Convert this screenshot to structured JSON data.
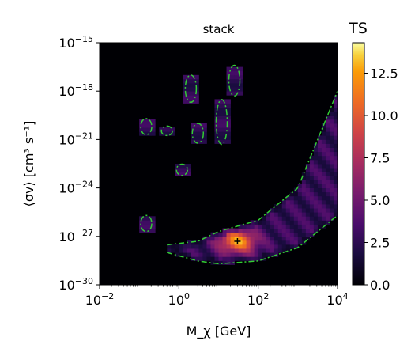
{
  "chart_data": {
    "type": "heatmap",
    "title": "stack",
    "xlabel": "M_χ [GeV]",
    "ylabel": "⟨σv⟩ [cm³ s⁻¹]",
    "x_scale": "log",
    "y_scale": "log",
    "xlim": [
      0.01,
      10000
    ],
    "ylim": [
      1e-30,
      1e-15
    ],
    "x_ticks": [
      {
        "value": 0.01,
        "base": "10",
        "exp": "−2"
      },
      {
        "value": 1,
        "base": "10",
        "exp": "0"
      },
      {
        "value": 100,
        "base": "10",
        "exp": "2"
      },
      {
        "value": 10000,
        "base": "10",
        "exp": "4"
      }
    ],
    "y_ticks": [
      {
        "value": 1e-30,
        "base": "10",
        "exp": "−30"
      },
      {
        "value": 1e-27,
        "base": "10",
        "exp": "−27"
      },
      {
        "value": 1e-24,
        "base": "10",
        "exp": "−24"
      },
      {
        "value": 1e-21,
        "base": "10",
        "exp": "−21"
      },
      {
        "value": 1e-18,
        "base": "10",
        "exp": "−18"
      },
      {
        "value": 1e-15,
        "base": "10",
        "exp": "−15"
      }
    ],
    "colorbar": {
      "label": "TS",
      "range": [
        0.0,
        14.3
      ],
      "ticks": [
        {
          "value": 0.0,
          "label": "0.0"
        },
        {
          "value": 2.5,
          "label": "2.5"
        },
        {
          "value": 5.0,
          "label": "5.0"
        },
        {
          "value": 7.5,
          "label": "7.5"
        },
        {
          "value": 10.0,
          "label": "10.0"
        },
        {
          "value": 12.5,
          "label": "12.5"
        }
      ],
      "colormap": "inferno"
    },
    "best_fit": {
      "x": 30,
      "y": 5e-28,
      "marker": "+"
    },
    "contour_color": "#33cc33",
    "band": {
      "description_points": [
        {
          "x": 0.5,
          "y_low": 1e-28,
          "y_high": 3e-28
        },
        {
          "x": 3,
          "y_low": 3e-29,
          "y_high": 5e-28
        },
        {
          "x": 10,
          "y_low": 2e-29,
          "y_high": 2e-27
        },
        {
          "x": 100,
          "y_low": 3e-29,
          "y_high": 1e-26
        },
        {
          "x": 1000,
          "y_low": 2e-28,
          "y_high": 1e-24
        },
        {
          "x": 10000,
          "y_low": 2e-26,
          "y_high": 1e-18
        }
      ]
    },
    "island_contours": [
      {
        "x": 0.15,
        "y_low": 2e-21,
        "y_high": 2e-20
      },
      {
        "x": 0.5,
        "y_low": 2e-21,
        "y_high": 6e-21
      },
      {
        "x": 0.15,
        "y_low": 2e-27,
        "y_high": 2e-26
      },
      {
        "x": 2,
        "y_low": 2e-19,
        "y_high": 1e-17
      },
      {
        "x": 3,
        "y_low": 6e-22,
        "y_high": 1e-20
      },
      {
        "x": 1.2,
        "y_low": 6e-24,
        "y_high": 3e-23
      },
      {
        "x": 12,
        "y_low": 5e-22,
        "y_high": 3e-19
      },
      {
        "x": 25,
        "y_low": 5e-19,
        "y_high": 4e-17
      }
    ]
  }
}
